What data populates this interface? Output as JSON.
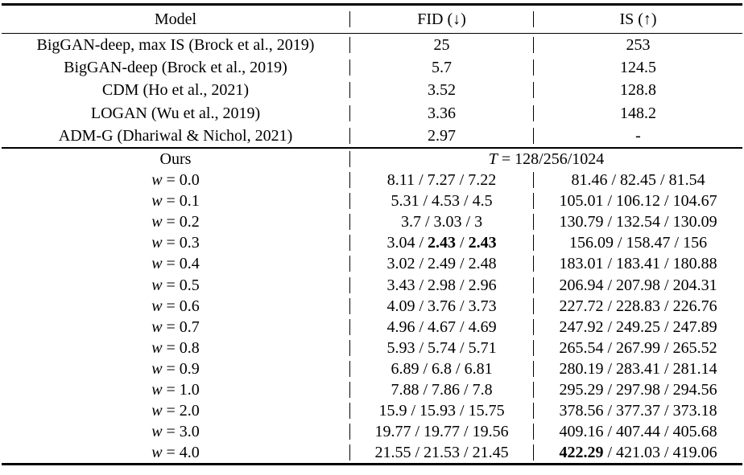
{
  "table": {
    "header": {
      "model": "Model",
      "fid": "FID (↓)",
      "is": "IS (↑)"
    },
    "baselines": [
      {
        "model": "BigGAN-deep, max IS (Brock et al., 2019)",
        "fid": "25",
        "is": "253"
      },
      {
        "model": "BigGAN-deep (Brock et al., 2019)",
        "fid": "5.7",
        "is": "124.5"
      },
      {
        "model": "CDM (Ho et al., 2021)",
        "fid": "3.52",
        "is": "128.8"
      },
      {
        "model": "LOGAN (Wu et al., 2019)",
        "fid": "3.36",
        "is": "148.2"
      },
      {
        "model": "ADM-G (Dhariwal & Nichol, 2021)",
        "fid": "2.97",
        "is": "-"
      }
    ],
    "ours": {
      "label": "Ours",
      "t_var": "T",
      "t_rest": " = 128/256/1024",
      "w_var": "w",
      "value_separator": " / ",
      "rows": [
        {
          "w": "0.0",
          "fid": [
            "8.11",
            "7.27",
            "7.22"
          ],
          "is": [
            "81.46",
            "82.45",
            "81.54"
          ]
        },
        {
          "w": "0.1",
          "fid": [
            "5.31",
            "4.53",
            "4.5"
          ],
          "is": [
            "105.01",
            "106.12",
            "104.67"
          ]
        },
        {
          "w": "0.2",
          "fid": [
            "3.7",
            "3.03",
            "3"
          ],
          "is": [
            "130.79",
            "132.54",
            "130.09"
          ]
        },
        {
          "w": "0.3",
          "fid": [
            "3.04",
            "2.43",
            "2.43"
          ],
          "fid_bold": [
            1,
            2
          ],
          "is": [
            "156.09",
            "158.47",
            "156"
          ]
        },
        {
          "w": "0.4",
          "fid": [
            "3.02",
            "2.49",
            "2.48"
          ],
          "is": [
            "183.01",
            "183.41",
            "180.88"
          ]
        },
        {
          "w": "0.5",
          "fid": [
            "3.43",
            "2.98",
            "2.96"
          ],
          "is": [
            "206.94",
            "207.98",
            "204.31"
          ]
        },
        {
          "w": "0.6",
          "fid": [
            "4.09",
            "3.76",
            "3.73"
          ],
          "is": [
            "227.72",
            "228.83",
            "226.76"
          ]
        },
        {
          "w": "0.7",
          "fid": [
            "4.96",
            "4.67",
            "4.69"
          ],
          "is": [
            "247.92",
            "249.25",
            "247.89"
          ]
        },
        {
          "w": "0.8",
          "fid": [
            "5.93",
            "5.74",
            "5.71"
          ],
          "is": [
            "265.54",
            "267.99",
            "265.52"
          ]
        },
        {
          "w": "0.9",
          "fid": [
            "6.89",
            "6.8",
            "6.81"
          ],
          "is": [
            "280.19",
            "283.41",
            "281.14"
          ]
        },
        {
          "w": "1.0",
          "fid": [
            "7.88",
            "7.86",
            "7.8"
          ],
          "is": [
            "295.29",
            "297.98",
            "294.56"
          ]
        },
        {
          "w": "2.0",
          "fid": [
            "15.9",
            "15.93",
            "15.75"
          ],
          "is": [
            "378.56",
            "377.37",
            "373.18"
          ]
        },
        {
          "w": "3.0",
          "fid": [
            "19.77",
            "19.77",
            "19.56"
          ],
          "is": [
            "409.16",
            "407.44",
            "405.68"
          ]
        },
        {
          "w": "4.0",
          "fid": [
            "21.55",
            "21.53",
            "21.45"
          ],
          "is": [
            "422.29",
            "421.03",
            "419.06"
          ],
          "is_bold": [
            0
          ]
        }
      ]
    }
  }
}
